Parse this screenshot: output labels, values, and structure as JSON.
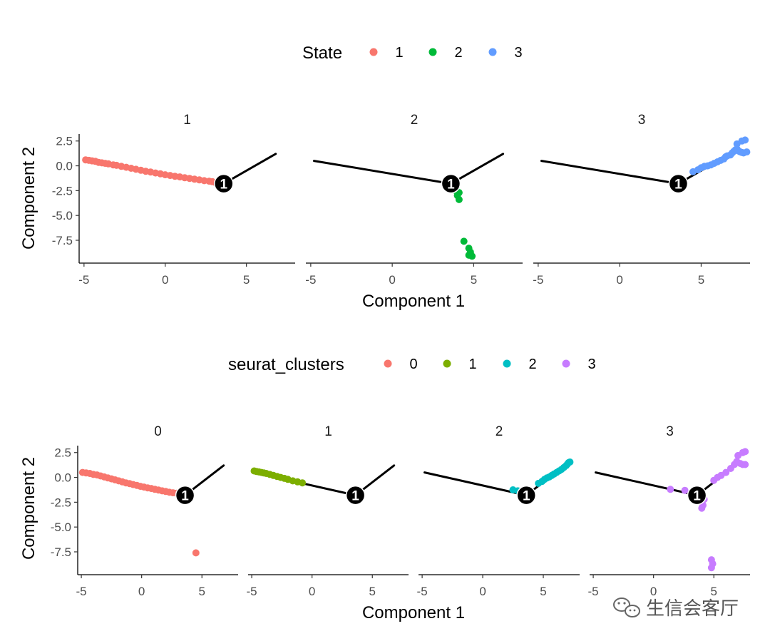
{
  "chart_data": [
    {
      "type": "scatter",
      "title": "",
      "xlabel": "Component 1",
      "ylabel": "Component 2",
      "xlim": [
        -5.3,
        8.0
      ],
      "ylim": [
        -9.8,
        3.2
      ],
      "xticks": [
        "-5",
        "0",
        "5"
      ],
      "yticks": [
        "2.5",
        "0.0",
        "-2.5",
        "-5.0",
        "-7.5"
      ],
      "grid": false,
      "legend": {
        "position": "top",
        "title": "State",
        "entries": [
          {
            "label": "1",
            "color": "#F8766D"
          },
          {
            "label": "2",
            "color": "#00BA38"
          },
          {
            "label": "3",
            "color": "#619CFF"
          }
        ]
      },
      "branch_point_label": "1",
      "trajectory": {
        "branch_point": [
          3.6,
          -1.8
        ],
        "segments": [
          [
            [
              -4.8,
              0.5
            ],
            [
              3.6,
              -1.8
            ]
          ],
          [
            [
              3.6,
              -1.8
            ],
            [
              6.8,
              1.2
            ]
          ]
        ]
      },
      "facets": [
        {
          "label": "1",
          "series": [
            {
              "name": "1",
              "color": "#F8766D",
              "points": [
                [
                  -4.9,
                  0.6
                ],
                [
                  -4.7,
                  0.55
                ],
                [
                  -4.5,
                  0.5
                ],
                [
                  -4.3,
                  0.45
                ],
                [
                  -4.1,
                  0.35
                ],
                [
                  -3.9,
                  0.3
                ],
                [
                  -3.7,
                  0.25
                ],
                [
                  -3.5,
                  0.2
                ],
                [
                  -3.2,
                  0.1
                ],
                [
                  -3.0,
                  0.05
                ],
                [
                  -2.7,
                  -0.05
                ],
                [
                  -2.4,
                  -0.15
                ],
                [
                  -2.1,
                  -0.25
                ],
                [
                  -1.8,
                  -0.35
                ],
                [
                  -1.5,
                  -0.45
                ],
                [
                  -1.2,
                  -0.55
                ],
                [
                  -0.9,
                  -0.62
                ],
                [
                  -0.6,
                  -0.72
                ],
                [
                  -0.3,
                  -0.8
                ],
                [
                  0.0,
                  -0.9
                ],
                [
                  0.3,
                  -0.97
                ],
                [
                  0.6,
                  -1.05
                ],
                [
                  0.9,
                  -1.12
                ],
                [
                  1.2,
                  -1.2
                ],
                [
                  1.5,
                  -1.27
                ],
                [
                  1.8,
                  -1.35
                ],
                [
                  2.1,
                  -1.42
                ],
                [
                  2.4,
                  -1.5
                ],
                [
                  2.7,
                  -1.55
                ],
                [
                  2.9,
                  -1.6
                ],
                [
                  3.1,
                  -1.7
                ],
                [
                  3.3,
                  -1.75
                ]
              ]
            }
          ]
        },
        {
          "label": "2",
          "series": [
            {
              "name": "2",
              "color": "#00BA38",
              "points": [
                [
                  3.9,
                  -2.5
                ],
                [
                  4.1,
                  -2.7
                ],
                [
                  4.0,
                  -3.0
                ],
                [
                  4.1,
                  -3.4
                ],
                [
                  4.4,
                  -7.6
                ],
                [
                  4.7,
                  -8.3
                ],
                [
                  4.8,
                  -8.7
                ],
                [
                  4.7,
                  -9.0
                ],
                [
                  4.9,
                  -9.1
                ]
              ]
            }
          ]
        },
        {
          "label": "3",
          "series": [
            {
              "name": "3",
              "color": "#619CFF",
              "points": [
                [
                  4.5,
                  -0.6
                ],
                [
                  4.8,
                  -0.4
                ],
                [
                  5.0,
                  -0.2
                ],
                [
                  5.2,
                  -0.05
                ],
                [
                  5.4,
                  0.0
                ],
                [
                  5.6,
                  0.1
                ],
                [
                  5.8,
                  0.25
                ],
                [
                  6.0,
                  0.4
                ],
                [
                  6.2,
                  0.55
                ],
                [
                  6.4,
                  0.7
                ],
                [
                  6.5,
                  0.9
                ],
                [
                  6.6,
                  1.0
                ],
                [
                  6.8,
                  1.1
                ],
                [
                  6.9,
                  1.3
                ],
                [
                  7.0,
                  1.45
                ],
                [
                  7.1,
                  1.6
                ],
                [
                  7.2,
                  1.7
                ],
                [
                  7.3,
                  1.5
                ],
                [
                  7.4,
                  1.4
                ],
                [
                  7.5,
                  1.35
                ],
                [
                  7.6,
                  1.3
                ],
                [
                  7.2,
                  2.2
                ],
                [
                  7.5,
                  2.5
                ],
                [
                  7.7,
                  2.6
                ],
                [
                  7.8,
                  1.4
                ]
              ]
            }
          ]
        }
      ]
    },
    {
      "type": "scatter",
      "title": "",
      "xlabel": "Component 1",
      "ylabel": "Component 2",
      "xlim": [
        -5.3,
        8.0
      ],
      "ylim": [
        -9.8,
        3.2
      ],
      "xticks": [
        "-5",
        "0",
        "5"
      ],
      "yticks": [
        "2.5",
        "0.0",
        "-2.5",
        "-5.0",
        "-7.5"
      ],
      "grid": false,
      "legend": {
        "position": "top",
        "title": "seurat_clusters",
        "entries": [
          {
            "label": "0",
            "color": "#F8766D"
          },
          {
            "label": "1",
            "color": "#7CAE00"
          },
          {
            "label": "2",
            "color": "#00BFC4"
          },
          {
            "label": "3",
            "color": "#C77CFF"
          }
        ]
      },
      "branch_point_label": "1",
      "trajectory": {
        "branch_point": [
          3.6,
          -1.8
        ],
        "segments": [
          [
            [
              -4.8,
              0.5
            ],
            [
              3.6,
              -1.8
            ]
          ],
          [
            [
              3.6,
              -1.8
            ],
            [
              6.8,
              1.2
            ]
          ]
        ]
      },
      "facets": [
        {
          "label": "0",
          "series": [
            {
              "name": "0",
              "color": "#F8766D",
              "points": [
                [
                  -4.9,
                  0.5
                ],
                [
                  -4.6,
                  0.45
                ],
                [
                  -4.3,
                  0.4
                ],
                [
                  -4.0,
                  0.3
                ],
                [
                  -3.7,
                  0.25
                ],
                [
                  -3.4,
                  0.15
                ],
                [
                  -3.1,
                  0.05
                ],
                [
                  -2.8,
                  -0.05
                ],
                [
                  -2.5,
                  -0.15
                ],
                [
                  -2.2,
                  -0.25
                ],
                [
                  -1.9,
                  -0.35
                ],
                [
                  -1.6,
                  -0.45
                ],
                [
                  -1.3,
                  -0.55
                ],
                [
                  -1.0,
                  -0.62
                ],
                [
                  -0.7,
                  -0.72
                ],
                [
                  -0.4,
                  -0.8
                ],
                [
                  -0.1,
                  -0.9
                ],
                [
                  0.2,
                  -0.97
                ],
                [
                  0.5,
                  -1.05
                ],
                [
                  0.8,
                  -1.12
                ],
                [
                  1.1,
                  -1.2
                ],
                [
                  1.4,
                  -1.27
                ],
                [
                  1.7,
                  -1.35
                ],
                [
                  2.0,
                  -1.42
                ],
                [
                  2.3,
                  -1.5
                ],
                [
                  2.6,
                  -1.55
                ],
                [
                  2.9,
                  -1.6
                ],
                [
                  3.2,
                  -1.7
                ],
                [
                  4.5,
                  -7.6
                ]
              ]
            }
          ]
        },
        {
          "label": "1",
          "series": [
            {
              "name": "1",
              "color": "#7CAE00",
              "points": [
                [
                  -4.8,
                  0.65
                ],
                [
                  -4.6,
                  0.6
                ],
                [
                  -4.4,
                  0.55
                ],
                [
                  -4.2,
                  0.5
                ],
                [
                  -4.0,
                  0.45
                ],
                [
                  -3.8,
                  0.4
                ],
                [
                  -3.5,
                  0.3
                ],
                [
                  -3.2,
                  0.2
                ],
                [
                  -2.9,
                  0.1
                ],
                [
                  -2.6,
                  0.0
                ],
                [
                  -2.3,
                  -0.1
                ],
                [
                  -2.0,
                  -0.2
                ],
                [
                  -1.6,
                  -0.35
                ],
                [
                  -1.2,
                  -0.45
                ],
                [
                  -0.8,
                  -0.55
                ]
              ]
            }
          ]
        },
        {
          "label": "2",
          "series": [
            {
              "name": "2",
              "color": "#00BFC4",
              "points": [
                [
                  2.5,
                  -1.25
                ],
                [
                  2.9,
                  -1.35
                ],
                [
                  3.3,
                  -1.45
                ],
                [
                  4.6,
                  -0.6
                ],
                [
                  4.9,
                  -0.4
                ],
                [
                  5.1,
                  -0.2
                ],
                [
                  5.3,
                  -0.05
                ],
                [
                  5.5,
                  0.05
                ],
                [
                  5.7,
                  0.2
                ],
                [
                  5.9,
                  0.35
                ],
                [
                  6.1,
                  0.5
                ],
                [
                  6.3,
                  0.65
                ],
                [
                  6.5,
                  0.8
                ],
                [
                  6.7,
                  1.0
                ],
                [
                  6.9,
                  1.2
                ],
                [
                  7.0,
                  1.35
                ],
                [
                  7.1,
                  1.5
                ],
                [
                  7.2,
                  1.55
                ]
              ]
            }
          ]
        },
        {
          "label": "3",
          "series": [
            {
              "name": "3",
              "color": "#C77CFF",
              "points": [
                [
                  1.4,
                  -1.2
                ],
                [
                  2.6,
                  -1.3
                ],
                [
                  3.7,
                  -1.9
                ],
                [
                  4.0,
                  -2.4
                ],
                [
                  4.1,
                  -2.8
                ],
                [
                  4.0,
                  -3.1
                ],
                [
                  4.2,
                  -2.2
                ],
                [
                  5.0,
                  -0.3
                ],
                [
                  5.3,
                  0.0
                ],
                [
                  5.6,
                  0.2
                ],
                [
                  6.0,
                  0.5
                ],
                [
                  6.4,
                  0.9
                ],
                [
                  6.7,
                  1.3
                ],
                [
                  6.9,
                  1.6
                ],
                [
                  7.0,
                  2.2
                ],
                [
                  7.2,
                  1.4
                ],
                [
                  7.4,
                  1.3
                ],
                [
                  7.6,
                  1.3
                ],
                [
                  7.4,
                  2.5
                ],
                [
                  7.6,
                  2.6
                ],
                [
                  4.8,
                  -8.3
                ],
                [
                  4.9,
                  -8.7
                ],
                [
                  4.8,
                  -9.1
                ]
              ]
            }
          ]
        }
      ]
    }
  ],
  "watermark": {
    "icon": "wechat-icon",
    "text": "生信会客厅"
  }
}
